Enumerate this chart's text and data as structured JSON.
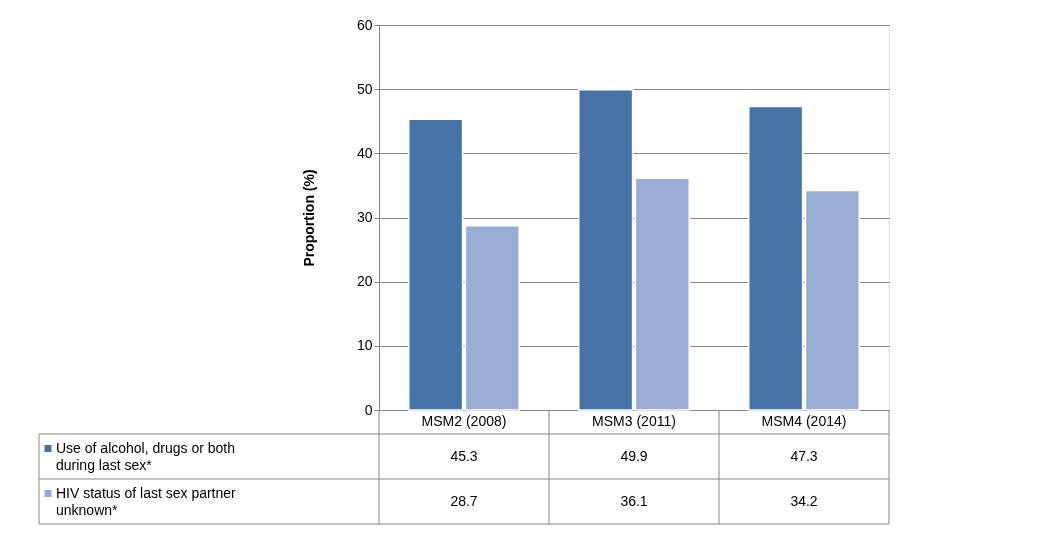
{
  "chart_data": {
    "type": "bar",
    "ylabel": "Proportion (%)",
    "categories": [
      "MSM2 (2008)",
      "MSM3 (2011)",
      "MSM4 (2014)"
    ],
    "series": [
      {
        "name": "Use of alcohol, drugs or both during last sex*",
        "color": "#4672a8",
        "values": [
          45.3,
          49.9,
          47.3
        ]
      },
      {
        "name": "HIV status of last sex partner unknown*",
        "color": "#98acd4",
        "values": [
          28.7,
          36.1,
          34.2
        ]
      }
    ],
    "ylim": [
      0,
      60
    ],
    "yticks": [
      0,
      10,
      20,
      30,
      40,
      50,
      60
    ],
    "grid": "y",
    "data_labels": true,
    "legend": "bottom left"
  }
}
